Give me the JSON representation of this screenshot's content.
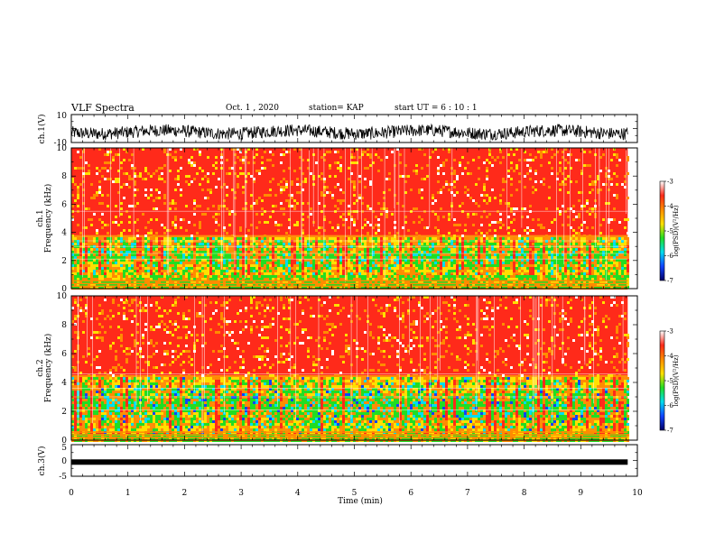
{
  "header": {
    "title": "VLF Spectra",
    "date": "Oct. 1 , 2020",
    "station": "station= KAP",
    "start_ut": "start  UT =   6 : 10 : 1"
  },
  "chart_data": [
    {
      "type": "line",
      "name": "ch1-waveform",
      "ylabel": "ch.1(V)",
      "ylim": [
        -10,
        10
      ],
      "y_ticks": [
        "10",
        "-10"
      ],
      "x_range_min": [
        0,
        9.83
      ],
      "level_mean_v": -2.5,
      "level_amplitude_v": 4.5
    },
    {
      "type": "heatmap",
      "name": "ch1-spectrogram",
      "ylabel": "ch.1\nFrequency  (kHz)",
      "ylim": [
        0,
        10
      ],
      "y_ticks": [
        "0",
        "2",
        "4",
        "6",
        "8",
        "10"
      ],
      "x_range_min": [
        0,
        9.83
      ],
      "colorbar": {
        "label": "log(PSD)(V²/Hz)",
        "range": [
          -7,
          -3
        ],
        "ticks": [
          "-3",
          "-4",
          "-5",
          "-6",
          "-7"
        ]
      },
      "dominant_log_psd": -3.5,
      "green_band_khz": [
        1.0,
        3.8
      ]
    },
    {
      "type": "heatmap",
      "name": "ch2-spectrogram",
      "ylabel": "ch.2\nFrequency  (kHz)",
      "ylim": [
        0,
        10
      ],
      "y_ticks": [
        "0",
        "2",
        "4",
        "6",
        "8",
        "10"
      ],
      "x_range_min": [
        0,
        9.83
      ],
      "colorbar": {
        "label": "log(PSD)(V²/Hz)",
        "range": [
          -7,
          -3
        ],
        "ticks": [
          "-3",
          "-4",
          "-5",
          "-6",
          "-7"
        ]
      },
      "dominant_log_psd": -3.5,
      "green_band_khz": [
        0.5,
        4.5
      ]
    },
    {
      "type": "line",
      "name": "ch3-waveform",
      "ylabel": "ch.3(V)",
      "ylim": [
        -5,
        5
      ],
      "y_ticks": [
        "5",
        "0",
        "-5"
      ],
      "x_range_min": [
        0,
        9.83
      ],
      "level_mean_v": -0.5
    }
  ],
  "x_axis": {
    "label": "Time  (min)",
    "range": [
      0,
      10
    ],
    "ticks": [
      "0",
      "1",
      "2",
      "3",
      "4",
      "5",
      "6",
      "7",
      "8",
      "9",
      "10"
    ]
  },
  "colors": {
    "red": "#ff2a1a",
    "orange": "#ff8c00",
    "yellow": "#ffe000",
    "green": "#22dd22",
    "cyan": "#00ddee",
    "blue": "#1144ff",
    "navy": "#000066"
  }
}
